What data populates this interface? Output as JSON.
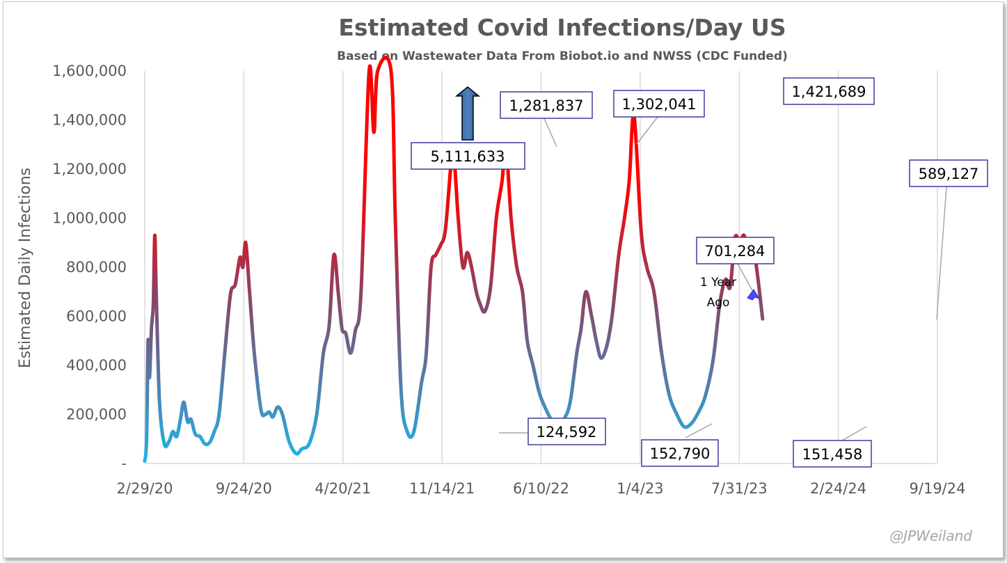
{
  "chart_data": {
    "type": "line",
    "title": "Estimated Covid Infections/Day US",
    "subtitle": "Based on Wastewater Data From Biobot.io and NWSS (CDC Funded)",
    "ylabel": "Estimated Daily Infections",
    "xlabel": "",
    "ylim": [
      0,
      1600000
    ],
    "y_ticks": [
      "-",
      "200,000",
      "400,000",
      "600,000",
      "800,000",
      "1,000,000",
      "1,200,000",
      "1,400,000",
      "1,600,000"
    ],
    "x_ticks": [
      "2/29/20",
      "9/24/20",
      "4/20/21",
      "11/14/21",
      "6/10/22",
      "1/4/23",
      "7/31/23",
      "2/24/24",
      "9/19/24"
    ],
    "x_start": "2/29/20",
    "x_end": "9/19/24",
    "grid": "vertical",
    "color_scale": {
      "low": "#22b0e6",
      "mid": "#8b4364",
      "high": "#ff0000"
    },
    "series": [
      {
        "values": [
          [
            "2020-02-29",
            10000
          ],
          [
            "2020-03-04",
            100000
          ],
          [
            "2020-03-07",
            500000
          ],
          [
            "2020-03-10",
            350000
          ],
          [
            "2020-03-14",
            550000
          ],
          [
            "2020-03-18",
            650000
          ],
          [
            "2020-03-21",
            930000
          ],
          [
            "2020-03-24",
            700000
          ],
          [
            "2020-03-31",
            250000
          ],
          [
            "2020-04-10",
            80000
          ],
          [
            "2020-04-20",
            90000
          ],
          [
            "2020-04-28",
            130000
          ],
          [
            "2020-05-06",
            110000
          ],
          [
            "2020-05-14",
            180000
          ],
          [
            "2020-05-21",
            250000
          ],
          [
            "2020-05-29",
            170000
          ],
          [
            "2020-06-05",
            180000
          ],
          [
            "2020-06-14",
            120000
          ],
          [
            "2020-06-24",
            110000
          ],
          [
            "2020-07-04",
            80000
          ],
          [
            "2020-07-14",
            85000
          ],
          [
            "2020-07-24",
            130000
          ],
          [
            "2020-08-03",
            200000
          ],
          [
            "2020-08-15",
            450000
          ],
          [
            "2020-08-27",
            690000
          ],
          [
            "2020-09-06",
            730000
          ],
          [
            "2020-09-16",
            840000
          ],
          [
            "2020-09-22",
            800000
          ],
          [
            "2020-09-28",
            900000
          ],
          [
            "2020-10-06",
            700000
          ],
          [
            "2020-10-16",
            450000
          ],
          [
            "2020-10-30",
            220000
          ],
          [
            "2020-11-08",
            200000
          ],
          [
            "2020-11-16",
            210000
          ],
          [
            "2020-11-24",
            190000
          ],
          [
            "2020-12-04",
            230000
          ],
          [
            "2020-12-14",
            200000
          ],
          [
            "2020-12-28",
            90000
          ],
          [
            "2021-01-12",
            40000
          ],
          [
            "2021-01-24",
            60000
          ],
          [
            "2021-02-08",
            80000
          ],
          [
            "2021-02-24",
            200000
          ],
          [
            "2021-03-10",
            450000
          ],
          [
            "2021-03-22",
            560000
          ],
          [
            "2021-04-01",
            850000
          ],
          [
            "2021-04-10",
            700000
          ],
          [
            "2021-04-18",
            550000
          ],
          [
            "2021-04-26",
            530000
          ],
          [
            "2021-05-06",
            450000
          ],
          [
            "2021-05-16",
            540000
          ],
          [
            "2021-05-28",
            700000
          ],
          [
            "2021-06-14",
            1600000
          ],
          [
            "2021-06-24",
            1350000
          ],
          [
            "2021-07-02",
            1600000
          ],
          [
            "2021-07-30",
            1600000
          ],
          [
            "2021-08-08",
            1000000
          ],
          [
            "2021-08-20",
            300000
          ],
          [
            "2021-09-02",
            130000
          ],
          [
            "2021-09-16",
            130000
          ],
          [
            "2021-10-02",
            330000
          ],
          [
            "2021-10-12",
            450000
          ],
          [
            "2021-10-22",
            800000
          ],
          [
            "2021-11-01",
            850000
          ],
          [
            "2021-11-11",
            890000
          ],
          [
            "2021-11-21",
            950000
          ],
          [
            "2021-12-02",
            1200000
          ],
          [
            "2021-12-08",
            1280000
          ],
          [
            "2021-12-18",
            1000000
          ],
          [
            "2021-12-28",
            800000
          ],
          [
            "2022-01-06",
            860000
          ],
          [
            "2022-01-15",
            800000
          ],
          [
            "2022-01-25",
            700000
          ],
          [
            "2022-02-02",
            650000
          ],
          [
            "2022-02-12",
            620000
          ],
          [
            "2022-02-24",
            720000
          ],
          [
            "2022-03-08",
            1000000
          ],
          [
            "2022-03-20",
            1150000
          ],
          [
            "2022-03-28",
            1300000
          ],
          [
            "2022-04-08",
            1000000
          ],
          [
            "2022-04-20",
            800000
          ],
          [
            "2022-05-02",
            700000
          ],
          [
            "2022-05-12",
            500000
          ],
          [
            "2022-05-24",
            400000
          ],
          [
            "2022-06-06",
            290000
          ],
          [
            "2022-06-18",
            230000
          ],
          [
            "2022-07-01",
            180000
          ],
          [
            "2022-07-14",
            150000
          ],
          [
            "2022-07-28",
            180000
          ],
          [
            "2022-08-10",
            250000
          ],
          [
            "2022-08-24",
            450000
          ],
          [
            "2022-09-02",
            550000
          ],
          [
            "2022-09-12",
            700000
          ],
          [
            "2022-09-24",
            600000
          ],
          [
            "2022-10-04",
            500000
          ],
          [
            "2022-10-14",
            430000
          ],
          [
            "2022-10-26",
            480000
          ],
          [
            "2022-11-06",
            600000
          ],
          [
            "2022-11-20",
            850000
          ],
          [
            "2022-12-02",
            1000000
          ],
          [
            "2022-12-12",
            1150000
          ],
          [
            "2022-12-22",
            1420000
          ],
          [
            "2023-01-06",
            950000
          ],
          [
            "2023-01-18",
            800000
          ],
          [
            "2023-02-02",
            700000
          ],
          [
            "2023-02-18",
            450000
          ],
          [
            "2023-03-06",
            280000
          ],
          [
            "2023-03-22",
            200000
          ],
          [
            "2023-04-06",
            150000
          ],
          [
            "2023-04-20",
            160000
          ],
          [
            "2023-05-04",
            200000
          ],
          [
            "2023-05-20",
            270000
          ],
          [
            "2023-06-06",
            420000
          ],
          [
            "2023-06-20",
            650000
          ],
          [
            "2023-07-02",
            750000
          ],
          [
            "2023-07-12",
            720000
          ],
          [
            "2023-07-22",
            920000
          ],
          [
            "2023-08-01",
            900000
          ],
          [
            "2023-08-10",
            930000
          ],
          [
            "2023-08-20",
            860000
          ],
          [
            "2023-09-02",
            840000
          ],
          [
            "2023-09-18",
            589127
          ]
        ]
      }
    ],
    "annotations": [
      {
        "text": "5,111,633"
      },
      {
        "text": "1,281,837"
      },
      {
        "text": "1,302,041"
      },
      {
        "text": "1,421,689"
      },
      {
        "text": "589,127"
      },
      {
        "text": "701,284"
      },
      {
        "text": "124,592"
      },
      {
        "text": "152,790"
      },
      {
        "text": "151,458"
      }
    ],
    "note_lines": [
      "1 Year",
      "Ago"
    ]
  },
  "watermark": "@JPWeiland"
}
